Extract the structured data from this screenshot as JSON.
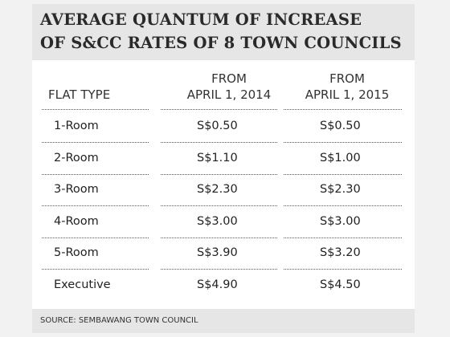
{
  "header": {
    "title_lines": [
      "AVERAGE QUANTUM OF INCREASE",
      "OF S&CC RATES OF 8 TOWN COUNCILS"
    ]
  },
  "table": {
    "columns": [
      [
        "FLAT TYPE"
      ],
      [
        "FROM",
        "APRIL 1, 2014"
      ],
      [
        "FROM",
        "APRIL 1, 2015"
      ]
    ],
    "rows": [
      [
        "1-Room",
        "S$0.50",
        "S$0.50"
      ],
      [
        "2-Room",
        "S$1.10",
        "S$1.00"
      ],
      [
        "3-Room",
        "S$2.30",
        "S$2.30"
      ],
      [
        "4-Room",
        "S$3.00",
        "S$3.00"
      ],
      [
        "5-Room",
        "S$3.90",
        "S$3.20"
      ],
      [
        "Executive",
        "S$4.90",
        "S$4.50"
      ]
    ]
  },
  "source": "SOURCE: SEMBAWANG TOWN COUNCIL"
}
